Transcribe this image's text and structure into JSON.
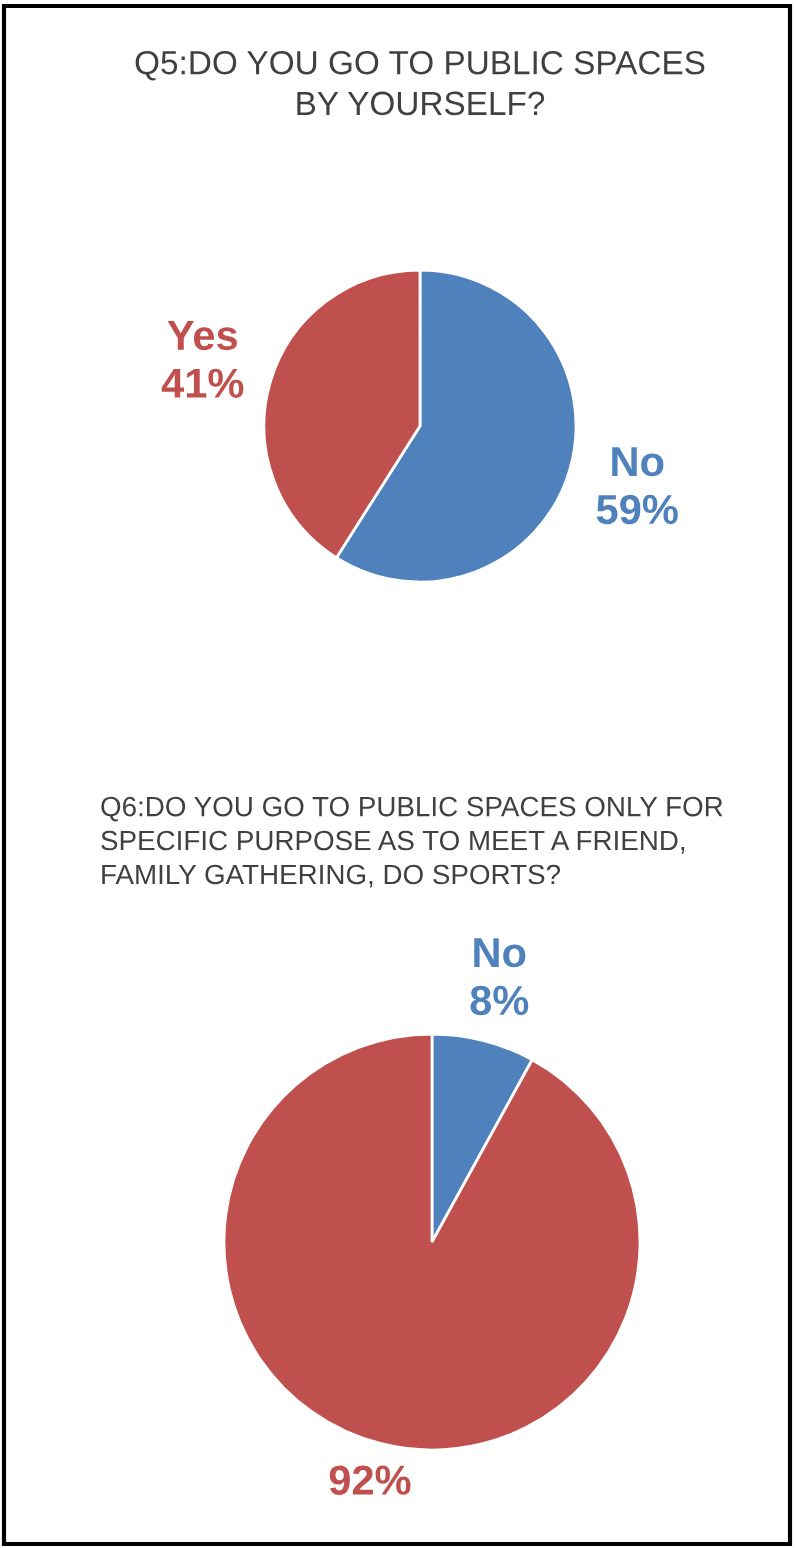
{
  "chart_data": [
    {
      "type": "pie",
      "title": "Q5:DO YOU GO TO PUBLIC SPACES BY YOURSELF?",
      "categories": [
        "No",
        "Yes"
      ],
      "values": [
        59,
        41
      ],
      "colors": [
        "#4f81bd",
        "#c0504d"
      ],
      "value_labels": [
        "59%",
        "41%"
      ]
    },
    {
      "type": "pie",
      "title": "Q6:DO YOU GO TO PUBLIC SPACES ONLY FOR SPECIFIC PURPOSE AS TO MEET A FRIEND, FAMILY GATHERING, DO SPORTS?",
      "categories": [
        "No",
        null
      ],
      "values": [
        8,
        92
      ],
      "colors": [
        "#4f81bd",
        "#c0504d"
      ],
      "value_labels": [
        "8%",
        "92%"
      ]
    }
  ]
}
